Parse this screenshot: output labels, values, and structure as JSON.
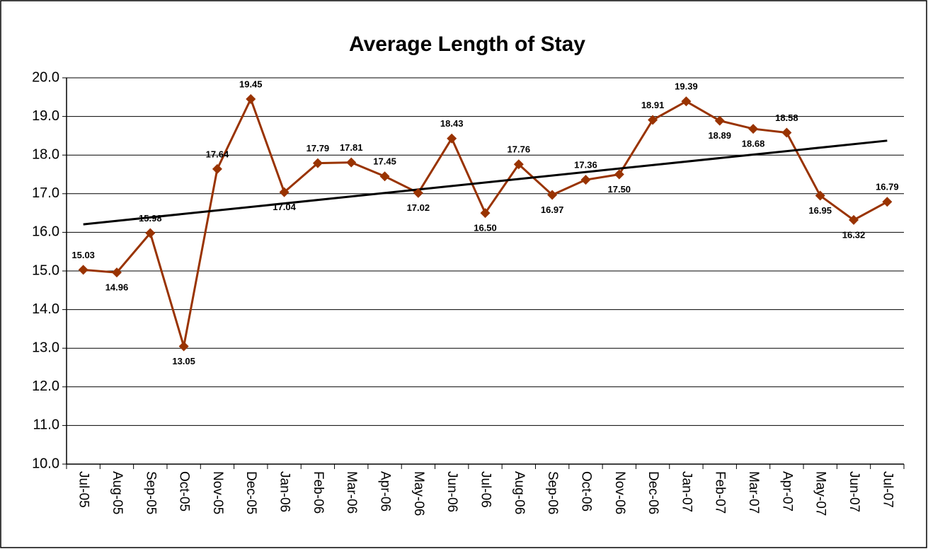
{
  "chart_data": {
    "type": "line",
    "title": "Average Length of Stay",
    "categories": [
      "Jul-05",
      "Aug-05",
      "Sep-05",
      "Oct-05",
      "Nov-05",
      "Dec-05",
      "Jan-06",
      "Feb-06",
      "Mar-06",
      "Apr-06",
      "May-06",
      "Jun-06",
      "Jul-06",
      "Aug-06",
      "Sep-06",
      "Oct-06",
      "Nov-06",
      "Dec-06",
      "Jan-07",
      "Feb-07",
      "Mar-07",
      "Apr-07",
      "May-07",
      "Jun-07",
      "Jul-07"
    ],
    "series": [
      {
        "color": "#993300",
        "values": [
          15.03,
          14.96,
          15.98,
          13.05,
          17.64,
          19.45,
          17.04,
          17.79,
          17.81,
          17.45,
          17.02,
          18.43,
          16.5,
          17.76,
          16.97,
          17.36,
          17.5,
          18.91,
          19.39,
          18.89,
          18.68,
          18.58,
          16.95,
          16.32,
          16.79
        ],
        "value_labels": [
          "15.03",
          "14.96",
          "15.98",
          "13.05",
          "17.64",
          "19.45",
          "17.04",
          "17.79",
          "17.81",
          "17.45",
          "17.02",
          "18.43",
          "16.50",
          "17.76",
          "16.97",
          "17.36",
          "17.50",
          "18.91",
          "19.39",
          "18.89",
          "18.68",
          "18.58",
          "16.95",
          "16.32",
          "16.79"
        ]
      }
    ],
    "trendline": true,
    "trendline_color": "#000000",
    "ylim": [
      10,
      20
    ],
    "yticks": [
      {
        "value": 10,
        "label": "10.0"
      },
      {
        "value": 11,
        "label": "11.0"
      },
      {
        "value": 12,
        "label": "12.0"
      },
      {
        "value": 13,
        "label": "13.0"
      },
      {
        "value": 14,
        "label": "14.0"
      },
      {
        "value": 15,
        "label": "15.0"
      },
      {
        "value": 16,
        "label": "16.0"
      },
      {
        "value": 17,
        "label": "17.0"
      },
      {
        "value": 18,
        "label": "18.0"
      },
      {
        "value": 19,
        "label": "19.0"
      },
      {
        "value": 20,
        "label": "20.0"
      }
    ],
    "grid": true
  }
}
